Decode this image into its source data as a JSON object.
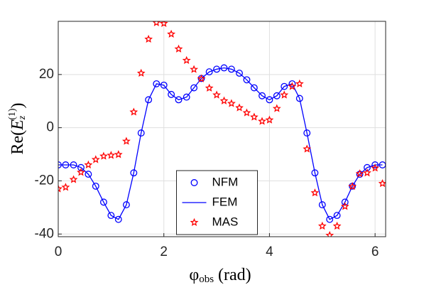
{
  "chart_data": {
    "type": "line",
    "xlabel": [
      "φ",
      "obs",
      " (rad)"
    ],
    "ylabel": [
      "Re(",
      "E",
      "z",
      "(1)",
      ")"
    ],
    "x": [
      0,
      0.14,
      0.29,
      0.43,
      0.57,
      0.71,
      0.86,
      1.0,
      1.14,
      1.29,
      1.43,
      1.57,
      1.71,
      1.86,
      2.0,
      2.14,
      2.28,
      2.43,
      2.57,
      2.71,
      2.86,
      3.0,
      3.14,
      3.28,
      3.43,
      3.57,
      3.71,
      3.86,
      4.0,
      4.14,
      4.28,
      4.43,
      4.57,
      4.71,
      4.86,
      5.0,
      5.14,
      5.28,
      5.43,
      5.57,
      5.71,
      5.85,
      6.0,
      6.14
    ],
    "series": [
      {
        "name": "NFM",
        "style": "circle",
        "color": "#0000ff",
        "values": [
          -14,
          -14,
          -14,
          -15,
          -17.5,
          -22,
          -28,
          -33,
          -34.5,
          -29,
          -17,
          -2,
          10.5,
          16.5,
          16,
          12.5,
          10.5,
          11.5,
          15,
          18.5,
          21,
          22,
          22.5,
          22,
          20.5,
          18,
          15,
          12,
          10.5,
          12,
          15.5,
          16.5,
          11,
          -2,
          -17,
          -29,
          -34.5,
          -33,
          -28,
          -22,
          -17.5,
          -15,
          -14,
          -14
        ]
      },
      {
        "name": "FEM",
        "style": "line",
        "color": "#0000ff",
        "values": [
          -14,
          -14,
          -14,
          -15,
          -17.5,
          -22,
          -28,
          -33,
          -34.5,
          -29,
          -17,
          -2,
          10.5,
          16.5,
          16,
          12.5,
          10.5,
          11.5,
          15,
          18.5,
          21,
          22,
          22.5,
          22,
          20.5,
          18,
          15,
          12,
          10.5,
          12,
          15.5,
          16.5,
          11,
          -2,
          -17,
          -29,
          -34.5,
          -33,
          -28,
          -22,
          -17.5,
          -15,
          -14,
          -14
        ]
      },
      {
        "name": "MAS",
        "style": "star",
        "color": "#ff0000",
        "values": [
          -23,
          -22.4,
          -19.5,
          -16.8,
          -14,
          -12,
          -10.7,
          -10.4,
          -10.1,
          -5.1,
          5.9,
          20.5,
          33.3,
          39.5,
          39.2,
          35.2,
          29.6,
          25.3,
          21.9,
          18.4,
          14.9,
          12.3,
          10.1,
          9.1,
          7.5,
          5.6,
          4,
          2.4,
          2.9,
          7.2,
          12.3,
          15.5,
          16.5,
          -8,
          -24.5,
          -37,
          -40.5,
          -37,
          -29.6,
          -22.1,
          -17.3,
          -17,
          -15.2,
          -21
        ]
      }
    ],
    "xlim": [
      0,
      6.2
    ],
    "xticks": [
      0,
      2,
      4,
      6
    ],
    "ylim": [
      -41,
      40
    ],
    "yticks": [
      -40,
      -20,
      0,
      20
    ],
    "grid": true,
    "legend": "lower center"
  }
}
